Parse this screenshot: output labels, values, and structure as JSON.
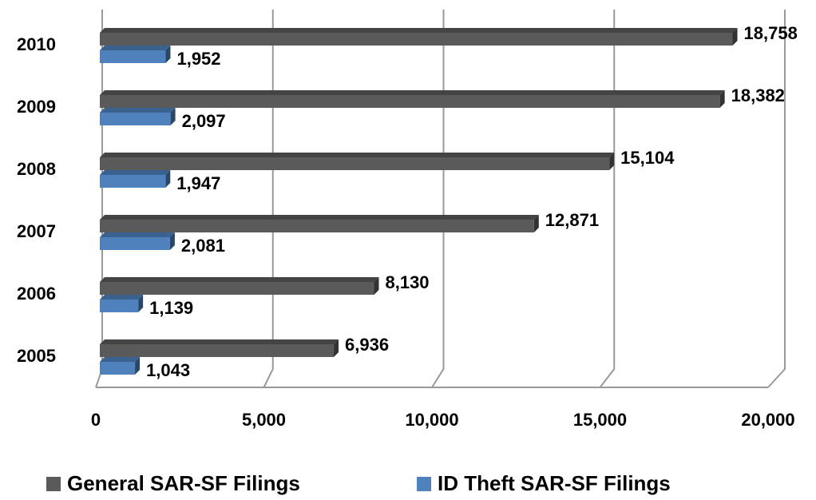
{
  "chart_data": {
    "type": "bar",
    "orientation": "horizontal",
    "categories": [
      "2010",
      "2009",
      "2008",
      "2007",
      "2006",
      "2005"
    ],
    "series": [
      {
        "name": "General SAR-SF Filings",
        "color": "#5a5a5a",
        "values": [
          18758,
          18382,
          15104,
          12871,
          8130,
          6936
        ],
        "value_labels": [
          "18,758",
          "18,382",
          "15,104",
          "12,871",
          "8,130",
          "6,936"
        ]
      },
      {
        "name": "ID Theft SAR-SF Filings",
        "color": "#4f81bd",
        "values": [
          1952,
          2097,
          1947,
          2081,
          1139,
          1043
        ],
        "value_labels": [
          "1,952",
          "2,097",
          "1,947",
          "2,081",
          "1,139",
          "1,043"
        ]
      }
    ],
    "xlim": [
      0,
      20000
    ],
    "xticks": [
      0,
      {
        "value": 5000,
        "label": "5,000"
      },
      {
        "value": 10000,
        "label": "10,000"
      },
      {
        "value": 15000,
        "label": "15,000"
      },
      {
        "value": 20000,
        "label": "20,000"
      }
    ],
    "grid": true
  }
}
